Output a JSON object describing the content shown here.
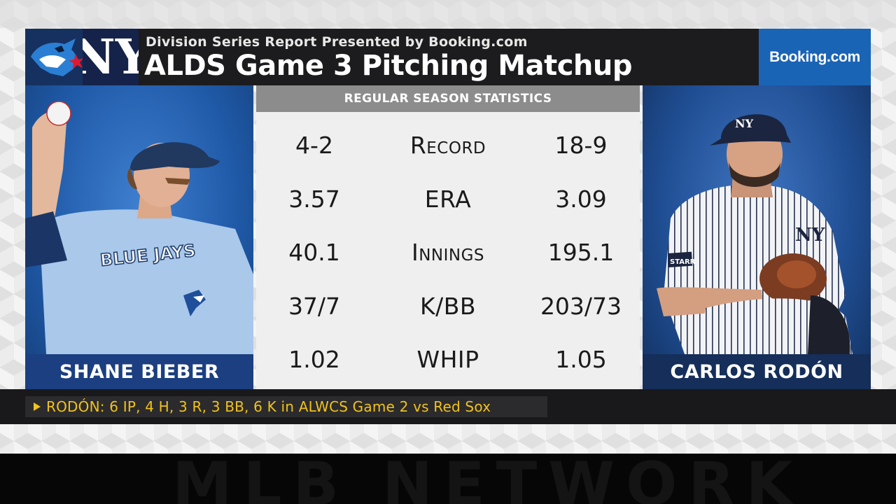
{
  "header": {
    "subtitle": "Division Series Report Presented by Booking.com",
    "title": "ALDS Game 3 Pitching Matchup",
    "sponsor": "Booking.com"
  },
  "stats": {
    "heading": "REGULAR SEASON STATISTICS",
    "rows": [
      {
        "left": "4-2",
        "label": "Record",
        "right": "18-9"
      },
      {
        "left": "3.57",
        "label": "ERA",
        "right": "3.09"
      },
      {
        "left": "40.1",
        "label": "Innings",
        "right": "195.1"
      },
      {
        "left": "37/7",
        "label": "K/BB",
        "right": "203/73"
      },
      {
        "left": "1.02",
        "label": "WHIP",
        "right": "1.05"
      }
    ]
  },
  "players": {
    "left": {
      "name": "SHANE BIEBER",
      "jersey_text": "BLUE JAYS"
    },
    "right": {
      "name": "CARLOS RODÓN",
      "patch_text": "STARR"
    }
  },
  "ticker": {
    "text": "RODÓN: 6 IP, 4 H, 3 R, 3 BB, 6 K in ALWCS Game 2 vs Red Sox"
  },
  "footer": {
    "network": "MLB NETWORK"
  },
  "colors": {
    "header_bg": "#1c1c1e",
    "sponsor_bg": "#1a64b6",
    "ticker_text": "#f2c21b",
    "blue_jays_blue": "#1f5aa8",
    "yankees_navy": "#15234a"
  },
  "icons": [
    "blue-jays-logo-icon",
    "yankees-logo-icon",
    "ticker-arrow-icon"
  ]
}
